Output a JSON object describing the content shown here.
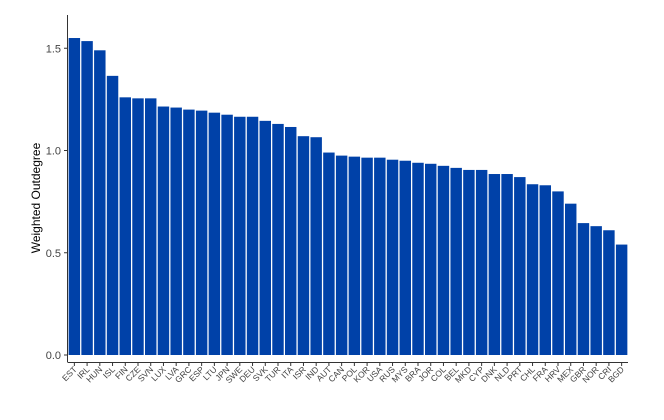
{
  "chart_data": {
    "type": "bar",
    "title": "",
    "xlabel": "",
    "ylabel": "Weighted Outdegree",
    "ylim": [
      0,
      1.6
    ],
    "yticks": [
      "0.0",
      "0.5",
      "1.0",
      "1.5"
    ],
    "ytick_values": [
      0,
      0.5,
      1.0,
      1.5
    ],
    "grid": false,
    "bar_color": "#0041a8",
    "axis_color": "#333333",
    "categories": [
      "EST",
      "IRL",
      "HUN",
      "ISL",
      "FIN",
      "CZE",
      "SVN",
      "LUX",
      "LVA",
      "GRC",
      "ESP",
      "LTU",
      "JPN",
      "SWE",
      "DEU",
      "SVK",
      "TUR",
      "ITA",
      "ISR",
      "IND",
      "AUT",
      "CAN",
      "POL",
      "KOR",
      "USA",
      "RUS",
      "MYS",
      "BRA",
      "JOR",
      "COL",
      "BEL",
      "MKD",
      "CYP",
      "DNK",
      "NLD",
      "PRT",
      "CHL",
      "FRA",
      "HRV",
      "MEX",
      "GBR",
      "NOR",
      "CRI",
      "BGD"
    ],
    "values": [
      1.55,
      1.535,
      1.49,
      1.365,
      1.26,
      1.255,
      1.255,
      1.215,
      1.21,
      1.2,
      1.195,
      1.185,
      1.175,
      1.165,
      1.165,
      1.145,
      1.13,
      1.115,
      1.07,
      1.065,
      0.99,
      0.975,
      0.97,
      0.965,
      0.965,
      0.955,
      0.95,
      0.94,
      0.935,
      0.925,
      0.915,
      0.905,
      0.905,
      0.885,
      0.885,
      0.87,
      0.835,
      0.83,
      0.8,
      0.74,
      0.645,
      0.63,
      0.61,
      0.54
    ]
  }
}
